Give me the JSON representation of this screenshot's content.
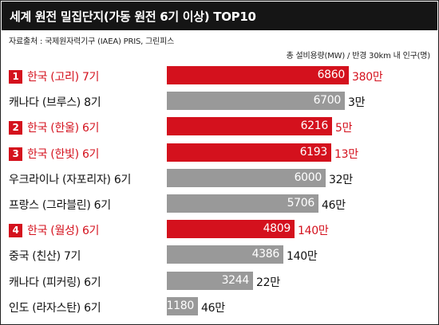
{
  "title": "세계 원전 밀집단지(가동 원전 6기 이상) TOP10",
  "source": "자료출처 : 국제원자력기구 (IAEA) PRIS, 그린피스",
  "legend": "총 설비용량(MW)  /  반경 30km 내 인구(명)",
  "colors": {
    "highlight": "#d4111d",
    "normal": "#999999",
    "title_bg": "#151515"
  },
  "chart_data": {
    "type": "bar",
    "orientation": "horizontal",
    "title": "세계 원전 밀집단지(가동 원전 6기 이상) TOP10",
    "categories": [
      "한국 (고리) 7기",
      "캐나다 (브루스) 8기",
      "한국 (한울) 6기",
      "한국 (한빛) 6기",
      "우크라이나 (자포리자) 6기",
      "프랑스 (그라블린) 6기",
      "한국 (월성) 6기",
      "중국 (친산) 7기",
      "캐나다 (피커링) 6기",
      "인도 (라자스탄) 6기"
    ],
    "ranks": [
      "1",
      "",
      "2",
      "3",
      "",
      "",
      "4",
      "",
      "",
      ""
    ],
    "highlight": [
      true,
      false,
      true,
      true,
      false,
      false,
      true,
      false,
      false,
      false
    ],
    "series": [
      {
        "name": "총 설비용량(MW)",
        "values": [
          6860,
          6700,
          6216,
          6193,
          6000,
          5706,
          4809,
          4386,
          3244,
          1180
        ]
      },
      {
        "name": "반경 30km 내 인구(명)",
        "values": [
          "380만",
          "3만",
          "5만",
          "13만",
          "32만",
          "46만",
          "140만",
          "140만",
          "22만",
          "46만"
        ]
      }
    ],
    "xlim": [
      0,
      6860
    ],
    "grid": false
  }
}
